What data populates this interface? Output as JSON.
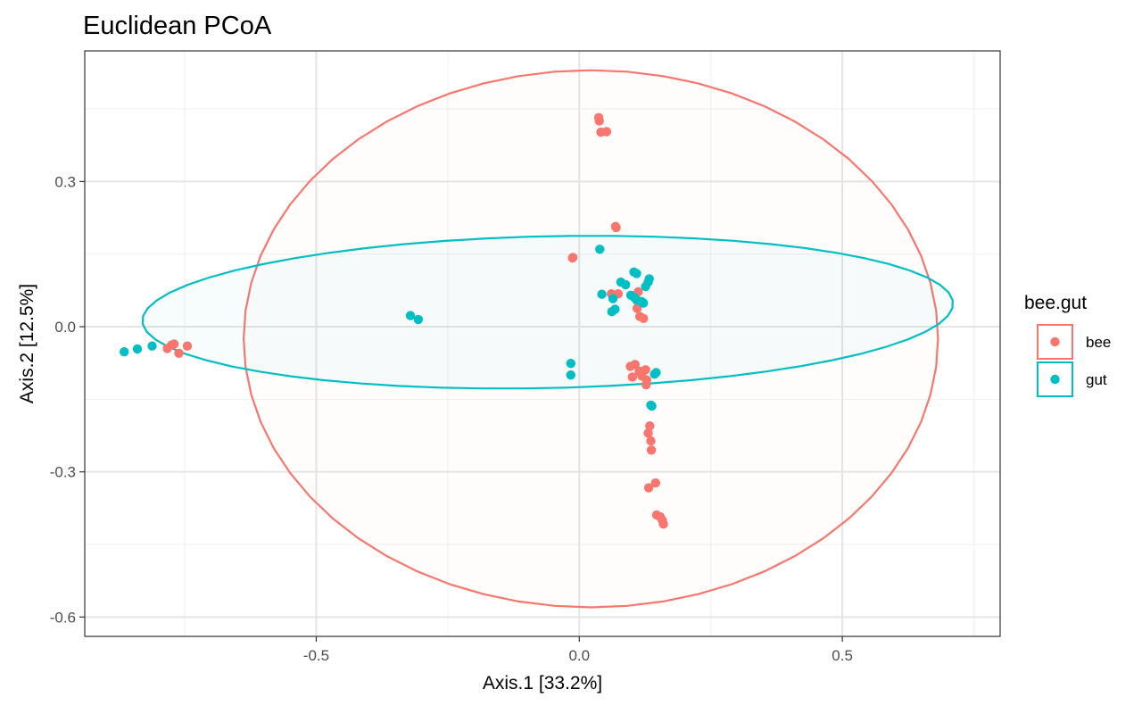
{
  "chart_data": {
    "type": "scatter",
    "title": "Euclidean PCoA",
    "xlabel": "Axis.1   [33.2%]",
    "ylabel": "Axis.2   [12.5%]",
    "xlim": [
      -0.94,
      0.8
    ],
    "ylim": [
      -0.64,
      0.57
    ],
    "xticks": [
      -0.5,
      0.0,
      0.5
    ],
    "xtick_labels": [
      "-0.5",
      "0.0",
      "0.5"
    ],
    "yticks": [
      -0.6,
      -0.3,
      0.0,
      0.3
    ],
    "ytick_labels": [
      "-0.6",
      "-0.3",
      "0.0",
      "0.3"
    ],
    "grid": true,
    "legend": {
      "title": "bee.gut",
      "position": "right",
      "items": [
        {
          "label": "bee",
          "color": "#F8766D"
        },
        {
          "label": "gut",
          "color": "#00BFC4"
        }
      ]
    },
    "series": [
      {
        "name": "bee",
        "color": "#F8766D",
        "points": [
          [
            0.037,
            0.432
          ],
          [
            0.038,
            0.425
          ],
          [
            0.041,
            0.402
          ],
          [
            0.052,
            0.403
          ],
          [
            0.069,
            0.207
          ],
          [
            0.07,
            0.205
          ],
          [
            -0.012,
            0.143
          ],
          [
            -0.013,
            0.142
          ],
          [
            0.061,
            0.068
          ],
          [
            0.074,
            0.068
          ],
          [
            0.112,
            0.072
          ],
          [
            0.11,
            0.038
          ],
          [
            0.115,
            0.021
          ],
          [
            0.122,
            0.017
          ],
          [
            0.097,
            -0.082
          ],
          [
            0.106,
            -0.078
          ],
          [
            0.114,
            -0.092
          ],
          [
            0.126,
            -0.089
          ],
          [
            0.119,
            -0.102
          ],
          [
            0.128,
            -0.11
          ],
          [
            0.101,
            -0.104
          ],
          [
            0.127,
            -0.12
          ],
          [
            0.134,
            -0.205
          ],
          [
            0.131,
            -0.22
          ],
          [
            0.136,
            -0.236
          ],
          [
            0.137,
            -0.255
          ],
          [
            0.145,
            -0.323
          ],
          [
            0.132,
            -0.333
          ],
          [
            0.147,
            -0.389
          ],
          [
            0.154,
            -0.393
          ],
          [
            0.158,
            -0.4
          ],
          [
            0.16,
            -0.408
          ],
          [
            -0.775,
            -0.038
          ],
          [
            -0.783,
            -0.045
          ],
          [
            -0.77,
            -0.036
          ],
          [
            -0.745,
            -0.04
          ],
          [
            -0.761,
            -0.055
          ]
        ]
      },
      {
        "name": "gut",
        "color": "#00BFC4",
        "points": [
          [
            0.039,
            0.16
          ],
          [
            0.104,
            0.113
          ],
          [
            0.109,
            0.11
          ],
          [
            0.133,
            0.099
          ],
          [
            0.079,
            0.092
          ],
          [
            0.088,
            0.087
          ],
          [
            0.131,
            0.092
          ],
          [
            0.126,
            0.083
          ],
          [
            0.043,
            0.067
          ],
          [
            0.098,
            0.065
          ],
          [
            0.105,
            0.06
          ],
          [
            0.109,
            0.055
          ],
          [
            0.118,
            0.052
          ],
          [
            0.122,
            0.049
          ],
          [
            0.064,
            0.058
          ],
          [
            0.068,
            0.036
          ],
          [
            0.062,
            0.031
          ],
          [
            -0.321,
            0.023
          ],
          [
            -0.306,
            0.015
          ],
          [
            -0.016,
            -0.076
          ],
          [
            -0.016,
            -0.1
          ],
          [
            0.138,
            -0.164
          ],
          [
            0.136,
            -0.162
          ],
          [
            0.146,
            -0.095
          ],
          [
            0.143,
            -0.098
          ],
          [
            -0.865,
            -0.052
          ],
          [
            -0.84,
            -0.046
          ],
          [
            -0.812,
            -0.04
          ]
        ]
      }
    ],
    "ellipses": [
      {
        "group": "bee",
        "color": "#F8766D",
        "fill": "#F8766D",
        "fill_opacity": 0.02,
        "center": [
          0.022,
          -0.025
        ],
        "rx": 0.66,
        "ry": 0.555,
        "angle": 0
      },
      {
        "group": "gut",
        "color": "#00BFC4",
        "fill": "#00BFC4",
        "fill_opacity": 0.03,
        "center": [
          -0.06,
          0.03
        ],
        "rx": 0.79,
        "ry": 0.16,
        "angle": 13
      }
    ]
  }
}
